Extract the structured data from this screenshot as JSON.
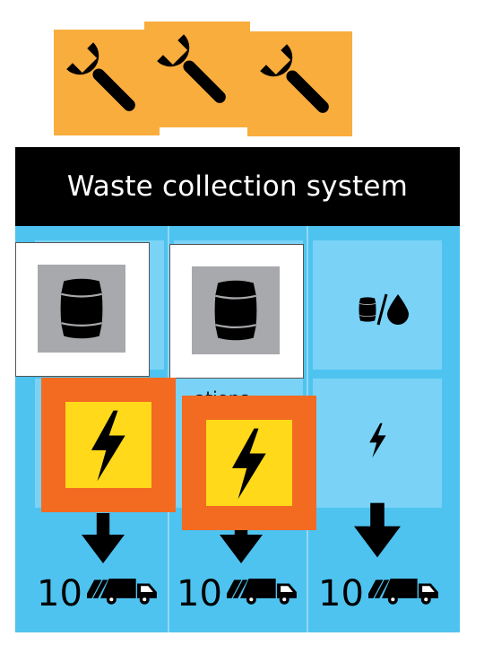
{
  "card": {
    "title": "Waste collection system",
    "header_bg": "#000000",
    "body_bg": "#4fc3f0",
    "cell_bg": "#7ad3f7"
  },
  "wrench_tiles": {
    "count": 3,
    "color": "#f9ad3d",
    "icon": "wrench-icon"
  },
  "columns": [
    {
      "slot_top_icon": "barrel-icon",
      "slot_bottom_icon": "lightning-icon",
      "arrow_icon": "down-arrow-icon",
      "count": "10",
      "truck_icon": "garbage-truck-icon"
    },
    {
      "slot_top_icon": "barrel-icon",
      "slot_bottom_icon": "lightning-icon",
      "slot_bottom_partial_label": "ations",
      "arrow_icon": "down-arrow-icon",
      "count": "10",
      "truck_icon": "garbage-truck-icon"
    },
    {
      "slot_top_icon": "barrel-drop-icon",
      "slot_bottom_icon": "lightning-icon",
      "arrow_icon": "down-arrow-icon",
      "count": "10",
      "truck_icon": "garbage-truck-icon"
    }
  ],
  "overlay_cards": {
    "barrel_card_color": "#ffffff",
    "barrel_inner_color": "#a7a9ac",
    "power_outer_color": "#f36a21",
    "power_inner_color": "#ffd91a"
  }
}
